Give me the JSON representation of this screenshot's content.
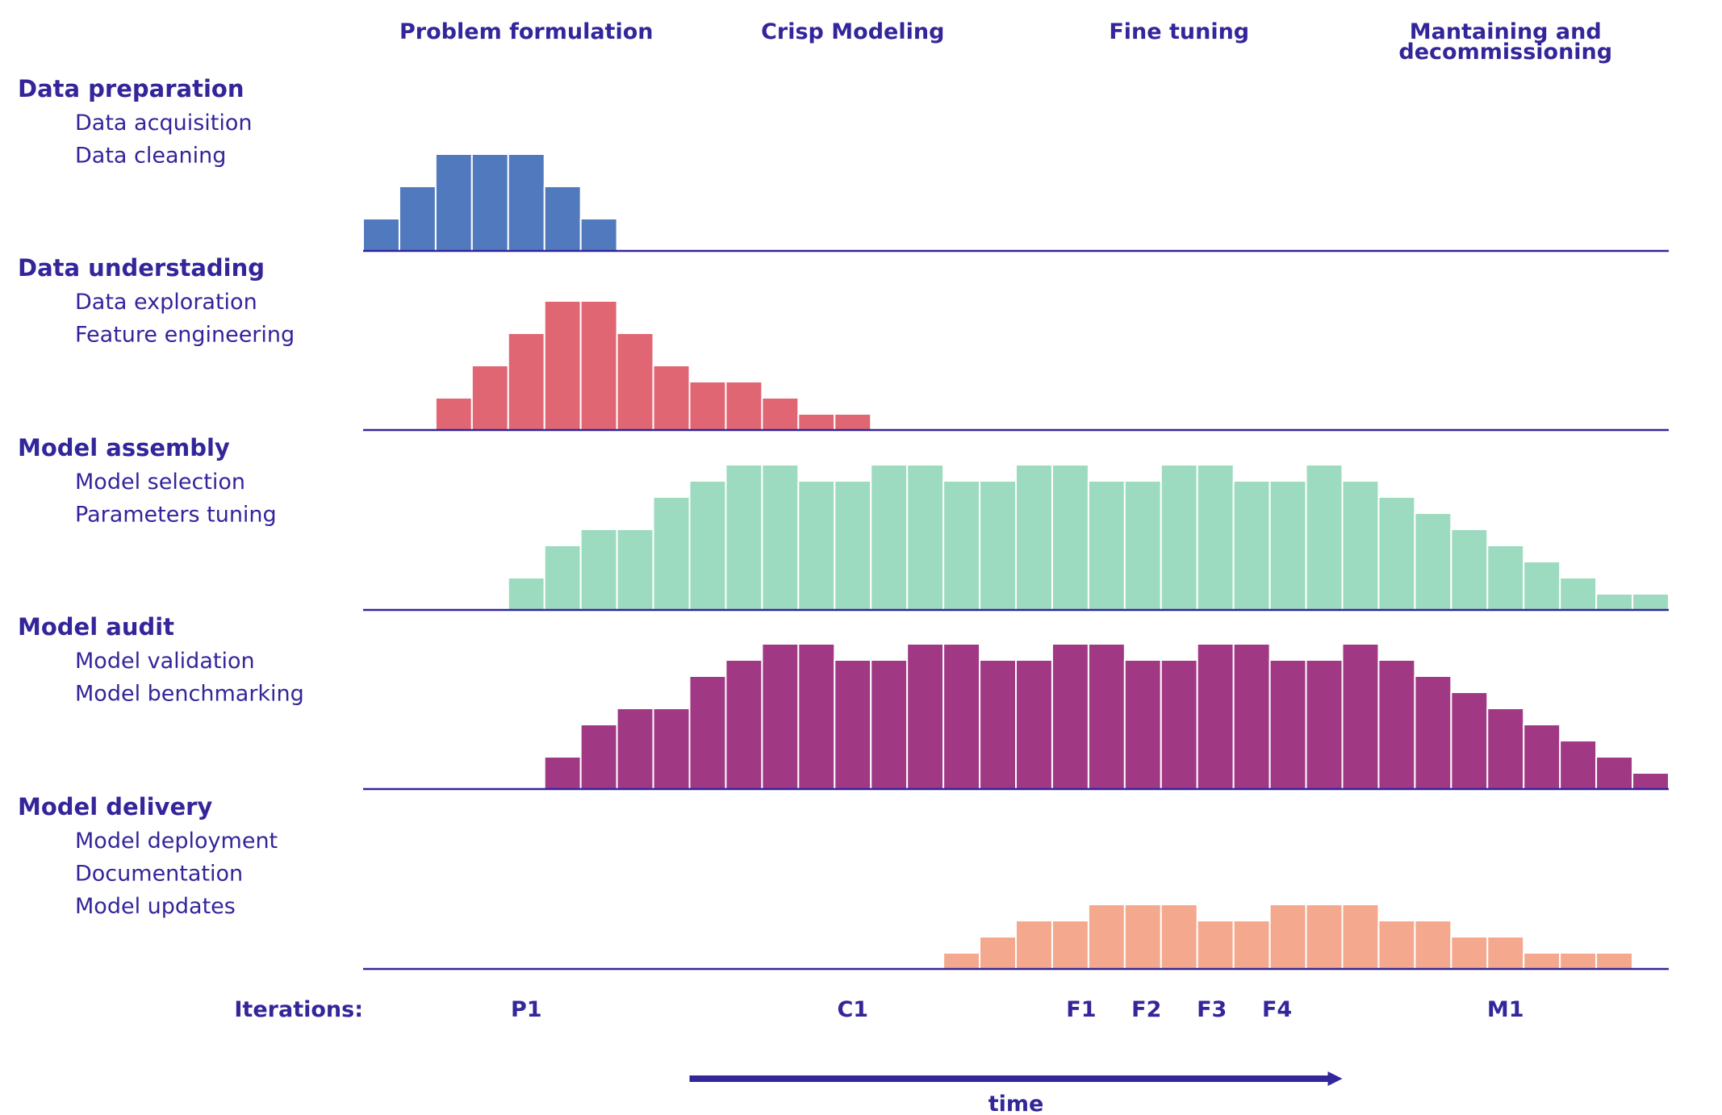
{
  "chart_data": {
    "type": "bar",
    "phases": [
      {
        "lines": [
          "Problem formulation"
        ],
        "at": 4.5
      },
      {
        "lines": [
          "Crisp Modeling"
        ],
        "at": 13.5
      },
      {
        "lines": [
          "Fine tuning"
        ],
        "at": 22.5
      },
      {
        "lines": [
          "Mantaining and",
          "decommissioning"
        ],
        "at": 31.5
      }
    ],
    "num_columns": 36,
    "series": [
      {
        "title": "Data preparation",
        "tasks": [
          "Data acquisition",
          "Data cleaning"
        ],
        "color": "#5079be",
        "values": [
          1,
          2,
          3,
          3,
          3,
          2,
          1,
          0,
          0,
          0,
          0,
          0,
          0,
          0,
          0,
          0,
          0,
          0,
          0,
          0,
          0,
          0,
          0,
          0,
          0,
          0,
          0,
          0,
          0,
          0,
          0,
          0,
          0,
          0,
          0,
          0
        ]
      },
      {
        "title": "Data understading",
        "tasks": [
          "Data exploration",
          "Feature engineering"
        ],
        "color": "#e06673",
        "values": [
          0,
          0,
          1,
          2,
          3,
          4,
          4,
          3,
          2,
          1.5,
          1.5,
          1,
          0.5,
          0.5,
          0,
          0,
          0,
          0,
          0,
          0,
          0,
          0,
          0,
          0,
          0,
          0,
          0,
          0,
          0,
          0,
          0,
          0,
          0,
          0,
          0,
          0
        ]
      },
      {
        "title": "Model assembly",
        "tasks": [
          "Model selection",
          "Parameters tuning"
        ],
        "color": "#9ddbc0",
        "values": [
          0,
          0,
          0,
          0,
          1,
          2,
          2.5,
          2.5,
          3.5,
          4,
          4.5,
          4.5,
          4,
          4,
          4.5,
          4.5,
          4,
          4,
          4.5,
          4.5,
          4,
          4,
          4.5,
          4.5,
          4,
          4,
          4.5,
          4,
          3.5,
          3,
          2.5,
          2,
          1.5,
          1,
          0.5,
          0.5
        ]
      },
      {
        "title": "Model audit",
        "tasks": [
          "Model validation",
          "Model benchmarking"
        ],
        "color": "#a03884",
        "values": [
          0,
          0,
          0,
          0,
          0,
          1,
          2,
          2.5,
          2.5,
          3.5,
          4,
          4.5,
          4.5,
          4,
          4,
          4.5,
          4.5,
          4,
          4,
          4.5,
          4.5,
          4,
          4,
          4.5,
          4.5,
          4,
          4,
          4.5,
          4,
          3.5,
          3,
          2.5,
          2,
          1.5,
          1,
          0.5
        ]
      },
      {
        "title": "Model delivery",
        "tasks": [
          "Model deployment",
          "Documentation",
          "Model updates"
        ],
        "color": "#f4a88d",
        "values": [
          0,
          0,
          0,
          0,
          0,
          0,
          0,
          0,
          0,
          0,
          0,
          0,
          0,
          0,
          0,
          0,
          0.5,
          1,
          1.5,
          1.5,
          2,
          2,
          2,
          1.5,
          1.5,
          2,
          2,
          2,
          1.5,
          1.5,
          1,
          1,
          0.5,
          0.5,
          0.5,
          0
        ]
      }
    ],
    "iterations_label": "Iterations:",
    "iterations": [
      {
        "label": "P1",
        "at": 4.5
      },
      {
        "label": "C1",
        "at": 13.5
      },
      {
        "label": "F1",
        "at": 19.8
      },
      {
        "label": "F2",
        "at": 21.6
      },
      {
        "label": "F3",
        "at": 23.4
      },
      {
        "label": "F4",
        "at": 25.2
      },
      {
        "label": "M1",
        "at": 31.5
      }
    ],
    "xlabel": "time",
    "time_arrow": {
      "from": 9,
      "to": 27
    },
    "ylim": [
      0,
      4.5
    ],
    "line_color": "#33259a"
  }
}
